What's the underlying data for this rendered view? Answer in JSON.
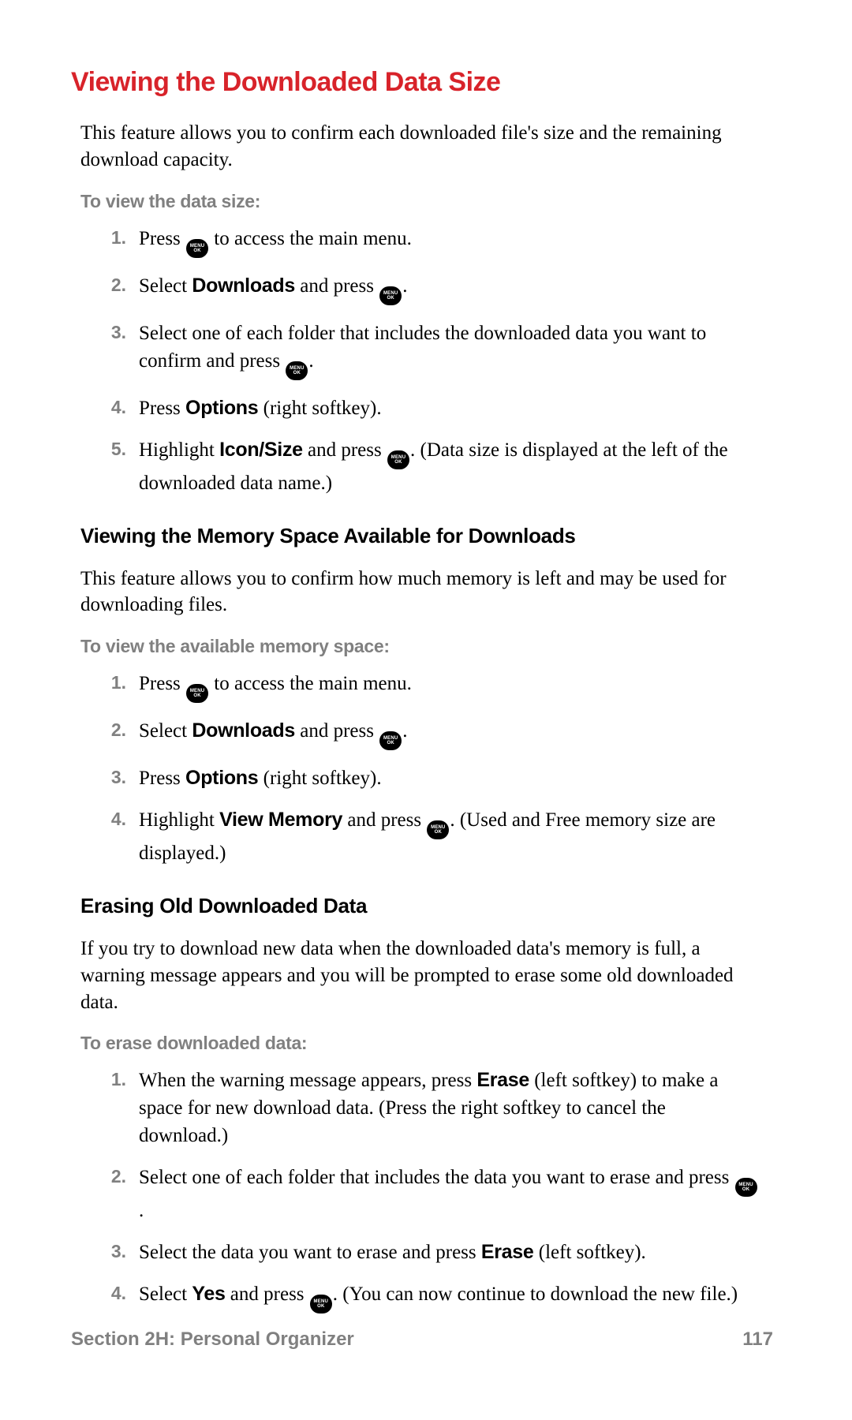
{
  "colors": {
    "title_red": "#d8232a",
    "gray_text": "#808080",
    "body_text": "#000000",
    "background": "#ffffff",
    "icon_bg": "#000000",
    "icon_fg": "#ffffff"
  },
  "typography": {
    "title_size_pt": 26,
    "subheading_size_pt": 20,
    "body_size_pt": 19,
    "lead_size_pt": 17,
    "footer_size_pt": 18,
    "serif_family": "Georgia",
    "sans_family": "Helvetica Neue"
  },
  "icon": {
    "label": "MENU/OK",
    "shape": "rounded-pill"
  },
  "title": "Viewing the Downloaded Data Size",
  "intro1": "This feature allows you to confirm each downloaded file's size and the remaining download capacity.",
  "lead1": "To view the data size:",
  "s1": {
    "n1": "1.",
    "t1a": "Press ",
    "t1b": " to access the main menu.",
    "n2": "2.",
    "t2a": "Select ",
    "t2b": "Downloads",
    "t2c": " and press ",
    "t2d": ".",
    "n3": "3.",
    "t3a": "Select one of each folder that includes the downloaded data you want to confirm and press ",
    "t3b": ".",
    "n4": "4.",
    "t4a": "Press ",
    "t4b": "Options",
    "t4c": " (right softkey).",
    "n5": "5.",
    "t5a": "Highlight ",
    "t5b": "Icon/Size",
    "t5c": " and press ",
    "t5d": ". (Data size is displayed at the left of the downloaded data name.)"
  },
  "sub2": "Viewing the Memory Space Available for Downloads",
  "intro2": "This feature allows you to confirm how much memory is left and may be used for downloading files.",
  "lead2": "To view the available memory space:",
  "s2": {
    "n1": "1.",
    "t1a": "Press ",
    "t1b": " to access the main menu.",
    "n2": "2.",
    "t2a": "Select ",
    "t2b": "Downloads",
    "t2c": " and press ",
    "t2d": ".",
    "n3": "3.",
    "t3a": "Press ",
    "t3b": "Options",
    "t3c": " (right softkey).",
    "n4": "4.",
    "t4a": "Highlight ",
    "t4b": "View Memory",
    "t4c": " and press ",
    "t4d": ". (Used and Free memory size are displayed.)"
  },
  "sub3": "Erasing Old Downloaded Data",
  "intro3": "If you try to download new data when the downloaded data's memory is full, a warning message appears and you will be prompted to erase some old downloaded data.",
  "lead3": "To erase downloaded data:",
  "s3": {
    "n1": "1.",
    "t1a": "When the warning message appears, press ",
    "t1b": "Erase",
    "t1c": " (left softkey) to make a space for new download data. (Press the right softkey to cancel the download.)",
    "n2": "2.",
    "t2a": "Select one of each folder that includes the data you want to erase and press ",
    "t2b": ".",
    "n3": "3.",
    "t3a": "Select the data you want to erase and press ",
    "t3b": "Erase",
    "t3c": " (left softkey).",
    "n4": "4.",
    "t4a": "Select ",
    "t4b": "Yes",
    "t4c": " and press ",
    "t4d": ". (You can now continue to download the new file.)"
  },
  "footer": {
    "section": "Section 2H: Personal Organizer",
    "page": "117"
  }
}
